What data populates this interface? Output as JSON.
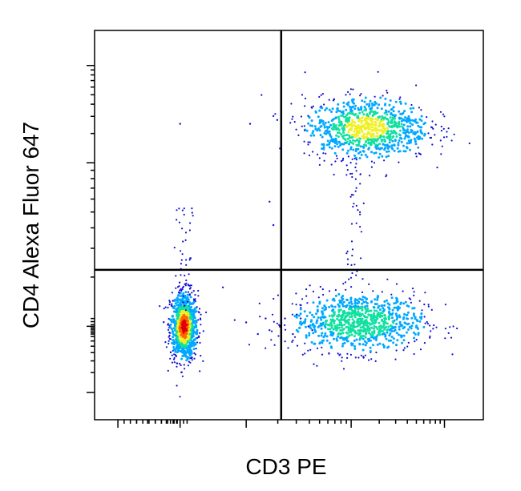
{
  "chart_data": {
    "type": "scatter",
    "subtype": "flow-cytometry-density-dot-plot",
    "xlabel": "CD3 PE",
    "ylabel": "CD4 Alexa Fluor 647",
    "x_scale": "biexponential (log-like), no tick labels printed",
    "y_scale": "biexponential (log-like), no tick labels printed",
    "xlim": [
      0,
      1
    ],
    "ylim": [
      0,
      1
    ],
    "grid": false,
    "legend": "none",
    "quadrant_gate": {
      "x": 0.48,
      "y": 0.385
    },
    "density_colormap": [
      "#1010d0",
      "#00a8ff",
      "#10e0a0",
      "#f0f020",
      "#ff6600",
      "#dd0000"
    ],
    "populations": [
      {
        "description": "CD3- CD4- (lower-left)",
        "x": 0.23,
        "y": 0.24,
        "spread_x": 0.018,
        "spread_y": 0.045,
        "peak": "red"
      },
      {
        "description": "CD3+ CD4- (lower-right)",
        "x": 0.68,
        "y": 0.25,
        "spread_x": 0.085,
        "spread_y": 0.038,
        "peak": "green"
      },
      {
        "description": "CD3+ CD4+ (upper-right)",
        "x": 0.7,
        "y": 0.75,
        "spread_x": 0.08,
        "spread_y": 0.04,
        "peak": "yellow-green"
      },
      {
        "description": "vertical stream (left)",
        "x": 0.23,
        "y_range": [
          0.28,
          0.55
        ],
        "sparse": true
      },
      {
        "description": "bridge between CD3+ groups",
        "x": 0.67,
        "y_range": [
          0.36,
          0.68
        ],
        "sparse": true
      }
    ]
  }
}
